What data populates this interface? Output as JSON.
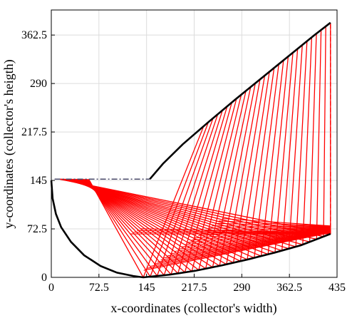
{
  "chart_data": {
    "type": "line",
    "title": "",
    "xlabel": "x-coordinates (collector's width)",
    "ylabel": "y-coordinates (collector's heigth)",
    "xlim": [
      0,
      435
    ],
    "ylim": [
      0,
      400
    ],
    "xticks": [
      0,
      72.5,
      145,
      217.5,
      290,
      362.5,
      435
    ],
    "yticks": [
      0,
      72.5,
      145,
      217.5,
      290,
      362.5
    ],
    "grid": true,
    "colors": {
      "collector": "#000000",
      "rays": "#ff0000",
      "axes": "#000000",
      "grid": "#dcdcdc"
    },
    "collector": {
      "left_arc": [
        [
          0,
          145
        ],
        [
          2,
          118
        ],
        [
          7,
          95
        ],
        [
          15,
          75
        ],
        [
          30,
          53
        ],
        [
          50,
          33
        ],
        [
          75,
          17
        ],
        [
          100,
          7
        ],
        [
          125,
          2
        ],
        [
          140,
          0
        ]
      ],
      "lower_curve": [
        [
          140,
          0
        ],
        [
          180,
          4
        ],
        [
          220,
          10
        ],
        [
          260,
          18
        ],
        [
          300,
          27
        ],
        [
          340,
          37
        ],
        [
          380,
          48
        ],
        [
          425,
          65
        ]
      ],
      "upper_curve": [
        [
          150,
          147
        ],
        [
          170,
          170
        ],
        [
          200,
          199
        ],
        [
          240,
          233
        ],
        [
          280,
          266
        ],
        [
          320,
          298
        ],
        [
          360,
          330
        ],
        [
          400,
          362
        ],
        [
          425,
          381
        ]
      ],
      "aperture": {
        "x": 425,
        "y_start": 65,
        "y_end": 381
      },
      "receiver": {
        "x_start": 5,
        "x_end": 150,
        "y": 147
      }
    },
    "rays": {
      "count": 28,
      "note": "",
      "incident_x_start": 232,
      "incident_x_end": 425,
      "reflect_low_x_start": 140,
      "reflect_low_x_end": 425,
      "receiver_hit_x_start": 12,
      "receiver_hit_x_end": 57
    }
  }
}
